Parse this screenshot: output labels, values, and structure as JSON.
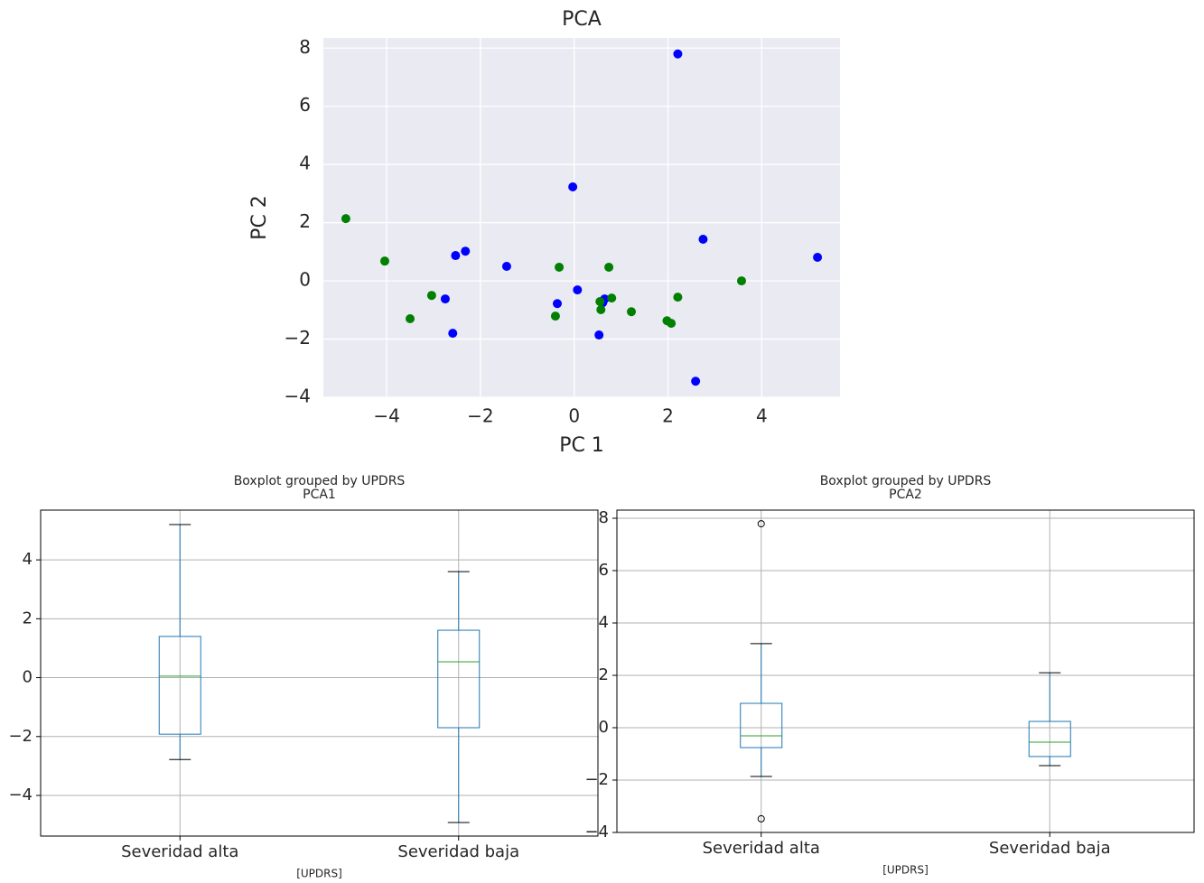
{
  "chart_data": [
    {
      "type": "scatter",
      "title": "PCA",
      "x_label": "PC 1",
      "y_label": "PC 2",
      "series": [
        {
          "color": "#0000ff",
          "x": [
            2.21,
            -0.03,
            2.75,
            5.19,
            -2.32,
            -2.53,
            -1.44,
            0.07,
            -0.36,
            0.65,
            0.61,
            -2.75,
            -2.59,
            0.53,
            2.59
          ],
          "y": [
            7.8,
            3.23,
            1.43,
            0.81,
            1.02,
            0.87,
            0.5,
            -0.31,
            -0.78,
            -0.62,
            -0.75,
            -0.62,
            -1.8,
            -1.86,
            -3.45
          ]
        },
        {
          "color": "#008000",
          "x": [
            -4.87,
            -4.04,
            -3.5,
            -3.04,
            -0.32,
            0.74,
            3.57,
            -0.4,
            0.55,
            0.57,
            0.8,
            1.22,
            2.21,
            1.98,
            2.07
          ],
          "y": [
            2.14,
            0.68,
            -1.3,
            -0.5,
            0.47,
            0.47,
            0.0,
            -1.21,
            -0.71,
            -0.99,
            -0.59,
            -1.06,
            -0.56,
            -1.37,
            -1.46
          ]
        }
      ],
      "xlim": [
        -5.35,
        5.67
      ],
      "ylim": [
        -4.0,
        8.35
      ],
      "xticks": [
        {
          "value": -4,
          "label": "−4"
        },
        {
          "value": -2,
          "label": "−2"
        },
        0,
        2,
        4
      ],
      "yticks": [
        {
          "value": -4,
          "label": "−4"
        },
        {
          "value": -2,
          "label": "−2"
        },
        0,
        2,
        4,
        6,
        8
      ],
      "grid": true
    },
    {
      "type": "box",
      "suptitle": "Boxplot grouped by UPDRS",
      "title": "PCA1",
      "x_label": "[UPDRS]",
      "categories": [
        "Severidad alta",
        "Severidad baja"
      ],
      "boxes": [
        {
          "whislo": -2.78,
          "q1": -1.92,
          "med": 0.05,
          "q3": 1.4,
          "whishi": 5.2,
          "fliers": []
        },
        {
          "whislo": -4.92,
          "q1": -1.7,
          "med": 0.54,
          "q3": 1.61,
          "whishi": 3.6,
          "fliers": []
        }
      ],
      "color": "#1f77b4",
      "median_color": "#2ca02c",
      "ylim": [
        -5.38,
        5.69
      ],
      "yticks": [
        {
          "value": -4,
          "label": "−4"
        },
        {
          "value": -2,
          "label": "−2"
        },
        0,
        2,
        4
      ],
      "grid": true
    },
    {
      "type": "box",
      "suptitle": "Boxplot grouped by UPDRS",
      "title": "PCA2",
      "x_label": "[UPDRS]",
      "categories": [
        "Severidad alta",
        "Severidad baja"
      ],
      "boxes": [
        {
          "whislo": -1.86,
          "q1": -0.76,
          "med": -0.31,
          "q3": 0.93,
          "whishi": 3.21,
          "fliers": [
            7.79,
            -3.48
          ]
        },
        {
          "whislo": -1.45,
          "q1": -1.1,
          "med": -0.55,
          "q3": 0.24,
          "whishi": 2.1,
          "fliers": []
        }
      ],
      "color": "#1f77b4",
      "median_color": "#2ca02c",
      "ylim": [
        -4.0,
        8.31
      ],
      "yticks": [
        {
          "value": -4,
          "label": "−4"
        },
        {
          "value": -2,
          "label": "−2"
        },
        0,
        2,
        4,
        6,
        8
      ],
      "grid": true
    }
  ]
}
